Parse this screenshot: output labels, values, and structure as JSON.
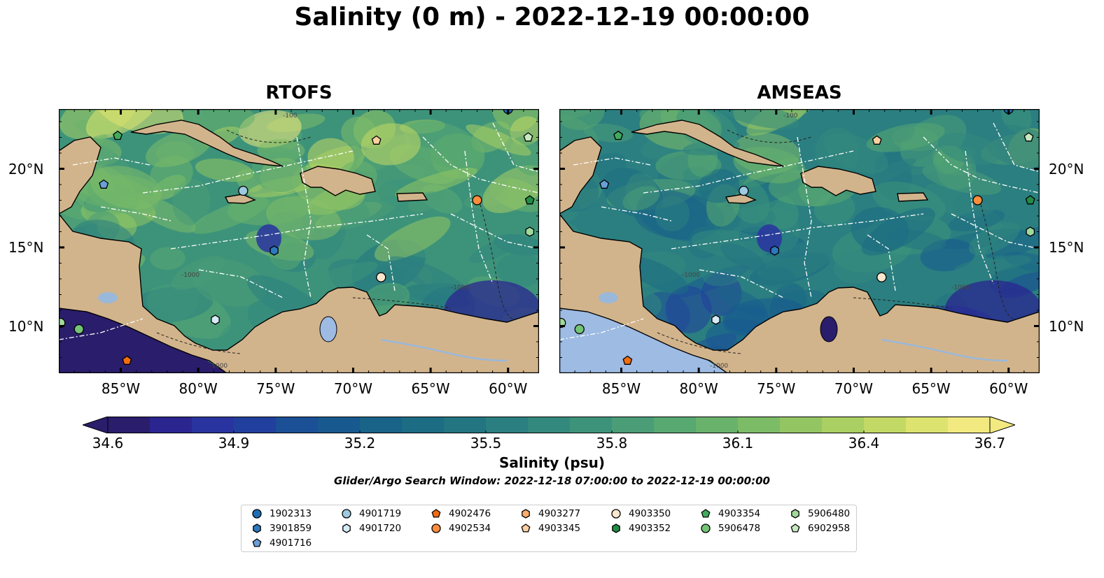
{
  "title": "Salinity (0 m) - 2022-12-19 00:00:00",
  "panels": [
    {
      "name": "RTOFS",
      "model": "rtofs"
    },
    {
      "name": "AMSEAS",
      "model": "amseas"
    }
  ],
  "axes": {
    "lon_labels": [
      "85°W",
      "80°W",
      "75°W",
      "70°W",
      "65°W",
      "60°W"
    ],
    "lon_values": [
      -85,
      -80,
      -75,
      -70,
      -65,
      -60
    ],
    "lat_labels": [
      "20°N",
      "15°N",
      "10°N"
    ],
    "lat_values": [
      20,
      15,
      10
    ],
    "extent": {
      "lon_min": -89,
      "lon_max": -58,
      "lat_min": 7,
      "lat_max": 23.8
    }
  },
  "colorbar": {
    "label": "Salinity (psu)",
    "min": 34.6,
    "max": 36.7,
    "ticks": [
      "34.6",
      "34.9",
      "35.2",
      "35.5",
      "35.8",
      "36.1",
      "36.4",
      "36.7"
    ],
    "colors": [
      "#2a1d6b",
      "#2b2590",
      "#2a34a0",
      "#213f9c",
      "#1b4f96",
      "#18598f",
      "#196388",
      "#1c6c84",
      "#237582",
      "#2b7f80",
      "#33897d",
      "#3d937a",
      "#4a9d76",
      "#58a871",
      "#69b26c",
      "#7dbc67",
      "#93c663",
      "#aacf62",
      "#c3d965",
      "#dde36f",
      "#f2ea80"
    ]
  },
  "subtitle": "Glider/Argo Search Window: 2022-12-18 07:00:00 to 2022-12-19 00:00:00",
  "floats": [
    {
      "id": "1902313",
      "color": "#1f6eb4",
      "shape": "circle",
      "lon": -60.0,
      "lat": 23.8
    },
    {
      "id": "3901859",
      "color": "#2d79be",
      "shape": "hexagon",
      "lon": -75.1,
      "lat": 14.8
    },
    {
      "id": "4901716",
      "color": "#6a9fd8",
      "shape": "pentagon",
      "lon": -86.1,
      "lat": 19.0
    },
    {
      "id": "4901719",
      "color": "#9ecae1",
      "shape": "circle",
      "lon": -77.1,
      "lat": 18.6
    },
    {
      "id": "4901720",
      "color": "#d6ebf7",
      "shape": "hexagon",
      "lon": -78.9,
      "lat": 10.4
    },
    {
      "id": "4902476",
      "color": "#f26d0f",
      "shape": "pentagon",
      "lon": -84.6,
      "lat": 7.8
    },
    {
      "id": "4902534",
      "color": "#fd8d3c",
      "shape": "circle",
      "lon": -62.0,
      "lat": 18.0
    },
    {
      "id": "4903277",
      "color": "#fdae6b",
      "shape": "hexagon",
      "lon": null,
      "lat": null
    },
    {
      "id": "4903345",
      "color": "#fdd0a2",
      "shape": "pentagon",
      "lon": -68.5,
      "lat": 21.8
    },
    {
      "id": "4903350",
      "color": "#fee6ce",
      "shape": "circle",
      "lon": -68.2,
      "lat": 13.1
    },
    {
      "id": "4903352",
      "color": "#238b45",
      "shape": "hexagon",
      "lon": null,
      "lat": null
    },
    {
      "id": "4903354",
      "color": "#41ab5d",
      "shape": "pentagon",
      "lon": -85.2,
      "lat": 22.1
    },
    {
      "id": "5906478",
      "color": "#74c476",
      "shape": "circle",
      "lon": -87.7,
      "lat": 9.8
    },
    {
      "id": "5906480",
      "color": "#a1d99b",
      "shape": "hexagon",
      "lon": -58.6,
      "lat": 16.0
    },
    {
      "id": "6902958",
      "color": "#c7e9c0",
      "shape": "pentagon",
      "lon": -58.7,
      "lat": 22.0
    }
  ],
  "extra_markers": [
    {
      "color": "#238b45",
      "shape": "pentagon",
      "lon": -58.6,
      "lat": 18.0
    },
    {
      "color": "#a1d99b",
      "shape": "circle",
      "lon": -88.9,
      "lat": 10.2
    }
  ],
  "contour_labels": [
    "-100",
    "-1000"
  ],
  "colors": {
    "land": "#d2b48c",
    "low_salinity_rtofs_pacific": "#2a1d6b",
    "pacific_amseas": "#9dbbe3",
    "rivers": "#9ab8d9"
  }
}
